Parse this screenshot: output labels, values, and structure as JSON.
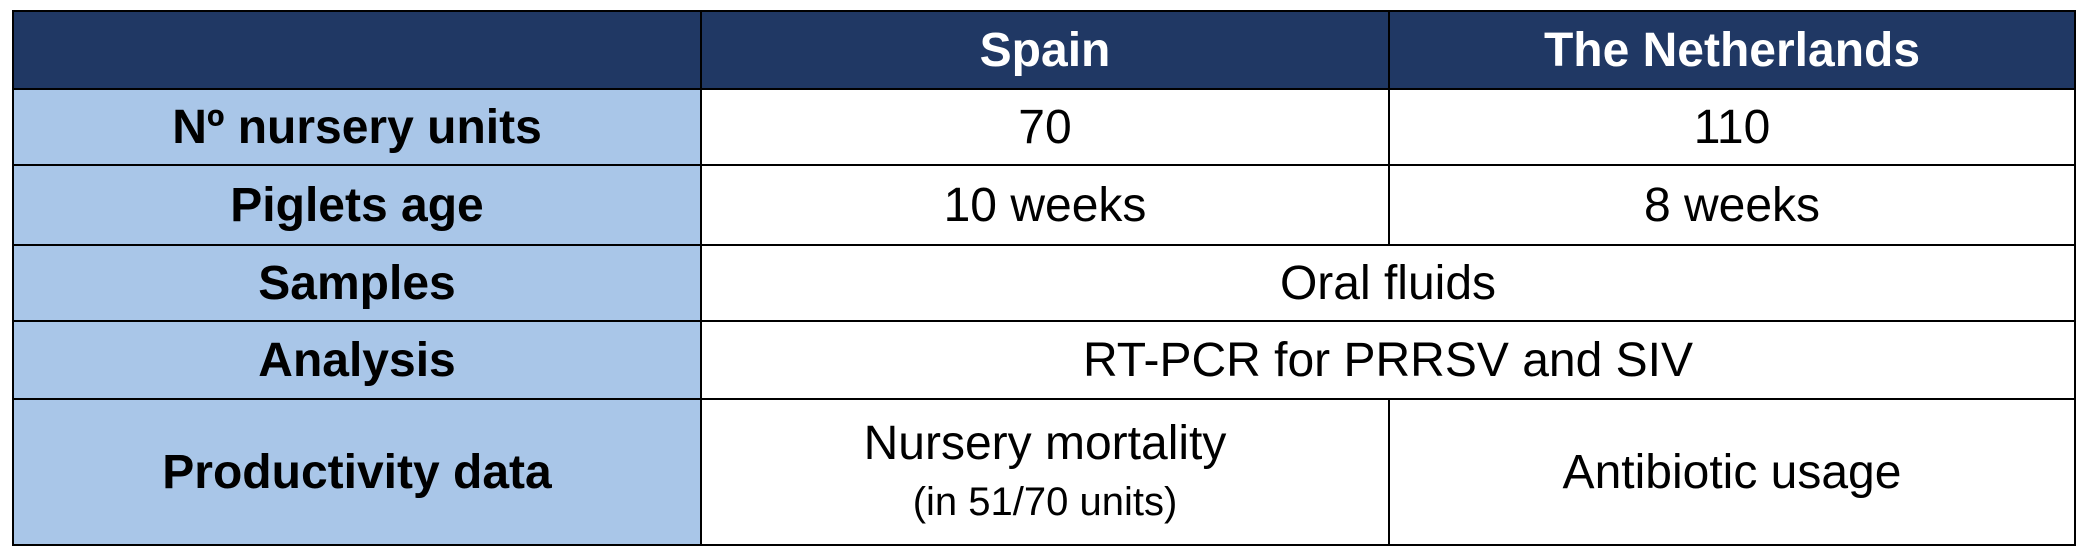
{
  "table": {
    "columns": [
      "",
      "Spain",
      "The Netherlands"
    ],
    "rows": [
      {
        "label": "Nº nursery units",
        "spain": "70",
        "netherlands": "110"
      },
      {
        "label": "Piglets age",
        "spain": "10 weeks",
        "netherlands": "8 weeks"
      },
      {
        "label": "Samples",
        "both": "Oral fluids"
      },
      {
        "label": "Analysis",
        "both": "RT-PCR for PRRSV and SIV"
      },
      {
        "label": "Productivity data",
        "spain": "Nursery mortality",
        "spain_note": "(in 51/70 units)",
        "netherlands": "Antibiotic usage"
      }
    ]
  },
  "colors": {
    "header_bg": "#203864",
    "header_text": "#ffffff",
    "row_label_bg": "#a9c6e8",
    "cell_bg": "#ffffff",
    "border": "#000000"
  }
}
